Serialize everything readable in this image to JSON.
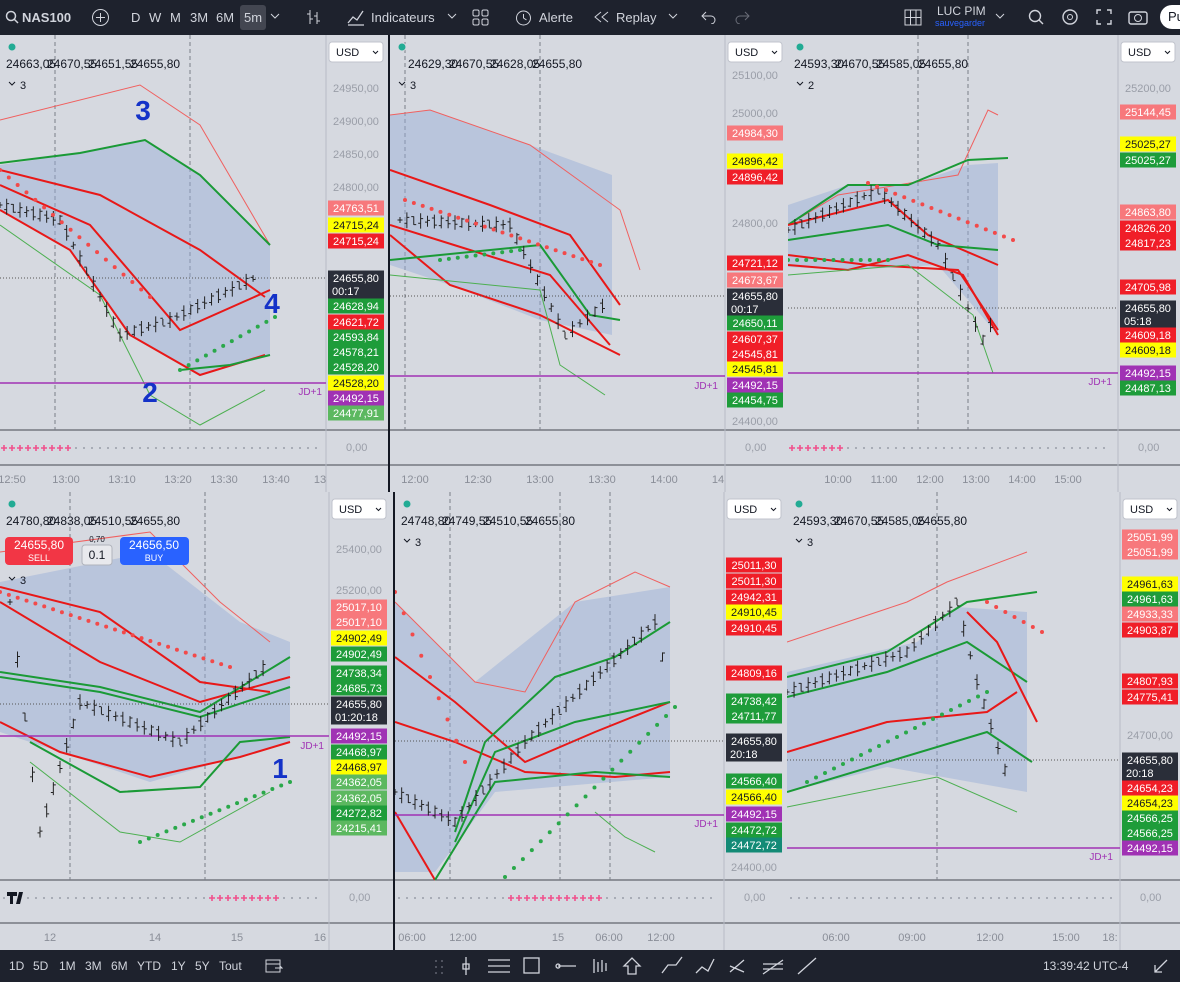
{
  "toolbar": {
    "symbol": "NAS100",
    "intervals": [
      "D",
      "W",
      "M",
      "3M",
      "6M",
      "5m"
    ],
    "indicators": "Indicateurs",
    "alert": "Alerte",
    "replay": "Replay",
    "user": "LUC PIM",
    "save": "sauvegarder",
    "publish": "Pu"
  },
  "panes": [
    {
      "ohlc": [
        "24663,05",
        "24670,55",
        "24651,55",
        "24655,80"
      ],
      "currency": "USD",
      "legend_count": "3",
      "axis_labels": [
        "24950,00",
        "24900,00",
        "24850,00",
        "24800,00"
      ],
      "price_labels": [
        {
          "text": "24763,51",
          "color": "#f7787c"
        },
        {
          "text": "24715,24",
          "color": "#ffff00"
        },
        {
          "text": "24715,24",
          "color": "#f01e28"
        },
        {
          "text": "24655,80",
          "sub": "00:17",
          "color": "#2a2e39"
        },
        {
          "text": "24628,94",
          "color": "#1e9c3a"
        },
        {
          "text": "24621,72",
          "color": "#f01e28"
        },
        {
          "text": "24593,84",
          "color": "#1e9c3a"
        },
        {
          "text": "24578,21",
          "color": "#1e9c3a"
        },
        {
          "text": "24528,20",
          "color": "#1e9c3a"
        },
        {
          "text": "24528,20",
          "color": "#ffff00"
        },
        {
          "text": "24492,15",
          "color": "#a032b4"
        },
        {
          "text": "24477,91",
          "color": "#5cb860"
        }
      ],
      "time_labels": [
        "12:50",
        "13:00",
        "13:10",
        "13:20",
        "13:30",
        "13:40",
        "13"
      ],
      "zero": "0,00",
      "jd": "JD+1",
      "annotations": [
        "3",
        "2",
        "4"
      ]
    },
    {
      "ohlc": [
        "24629,30",
        "24670,55",
        "24628,05",
        "24655,80"
      ],
      "currency": "USD",
      "legend_count": "3",
      "axis_labels": [
        "25100,00",
        "25000,00",
        "24800,00",
        "24400,00"
      ],
      "price_labels": [
        {
          "text": "24984,30",
          "color": "#f7787c"
        },
        {
          "text": "24896,42",
          "color": "#ffff00"
        },
        {
          "text": "24896,42",
          "color": "#f01e28"
        },
        {
          "text": "24721,12",
          "color": "#f01e28"
        },
        {
          "text": "24673,67",
          "color": "#f7787c"
        },
        {
          "text": "24655,80",
          "sub": "00:17",
          "color": "#2a2e39"
        },
        {
          "text": "24650,11",
          "color": "#1e9c3a"
        },
        {
          "text": "24607,37",
          "color": "#f01e28"
        },
        {
          "text": "24545,81",
          "color": "#f01e28"
        },
        {
          "text": "24545,81",
          "color": "#ffff00"
        },
        {
          "text": "24492,15",
          "color": "#a032b4"
        },
        {
          "text": "24454,75",
          "color": "#1e9c3a"
        }
      ],
      "time_labels": [
        "12:00",
        "12:30",
        "13:00",
        "13:30",
        "14:00",
        "14"
      ],
      "zero": "0,00",
      "jd": "JD+1",
      "annotations": []
    },
    {
      "ohlc": [
        "24593,30",
        "24670,55",
        "24585,05",
        "24655,80"
      ],
      "currency": "USD",
      "legend_count": "2",
      "axis_labels": [
        "25200,00"
      ],
      "price_labels": [
        {
          "text": "25144,45",
          "color": "#f7787c"
        },
        {
          "text": "25025,27",
          "color": "#ffff00"
        },
        {
          "text": "25025,27",
          "color": "#1e9c3a"
        },
        {
          "text": "24863,80",
          "color": "#f7787c"
        },
        {
          "text": "24826,20",
          "color": "#f01e28"
        },
        {
          "text": "24817,23",
          "color": "#f01e28"
        },
        {
          "text": "24705,98",
          "color": "#f01e28"
        },
        {
          "text": "24655,80",
          "sub": "05:18",
          "color": "#2a2e39"
        },
        {
          "text": "24609,18",
          "color": "#f01e28"
        },
        {
          "text": "24609,18",
          "color": "#ffff00"
        },
        {
          "text": "24492,15",
          "color": "#a032b4"
        },
        {
          "text": "24487,13",
          "color": "#1e9c3a"
        }
      ],
      "time_labels": [
        "10:00",
        "11:00",
        "12:00",
        "13:00",
        "14:00",
        "15:00"
      ],
      "zero": "0,00",
      "jd": "JD+1",
      "annotations": []
    },
    {
      "ohlc": [
        "24780,80",
        "24838,05",
        "24510,55",
        "24655,80"
      ],
      "currency": "USD",
      "legend_count": "3",
      "axis_labels": [
        "25400,00",
        "25200,00"
      ],
      "trade": {
        "sell_price": "24655,80",
        "sell": "SELL",
        "spread": "0,70",
        "qty": "0.1",
        "buy_price": "24656,50",
        "buy": "BUY"
      },
      "price_labels": [
        {
          "text": "25017,10",
          "color": "#f7787c"
        },
        {
          "text": "25017,10",
          "color": "#f7787c"
        },
        {
          "text": "24902,49",
          "color": "#ffff00"
        },
        {
          "text": "24902,49",
          "color": "#1e9c3a"
        },
        {
          "text": "24738,34",
          "color": "#1e9c3a"
        },
        {
          "text": "24685,73",
          "color": "#1e9c3a"
        },
        {
          "text": "24655,80",
          "sub": "01:20:18",
          "color": "#2a2e39"
        },
        {
          "text": "24492,15",
          "color": "#a032b4"
        },
        {
          "text": "24468,97",
          "color": "#1e9c3a"
        },
        {
          "text": "24468,97",
          "color": "#ffff00"
        },
        {
          "text": "24362,05",
          "color": "#5cb860"
        },
        {
          "text": "24362,05",
          "color": "#5cb860"
        },
        {
          "text": "24272,82",
          "color": "#1e9c3a"
        },
        {
          "text": "24215,41",
          "color": "#5cb860"
        }
      ],
      "time_labels": [
        "12",
        "14",
        "15",
        "16"
      ],
      "zero": "0,00",
      "jd": "JD+1",
      "annotations": [
        "1"
      ]
    },
    {
      "ohlc": [
        "24748,80",
        "24749,55",
        "24510,55",
        "24655,80"
      ],
      "currency": "USD",
      "legend_count": "3",
      "axis_labels": [
        "24400,00"
      ],
      "price_labels": [
        {
          "text": "25011,30",
          "color": "#f01e28"
        },
        {
          "text": "25011,30",
          "color": "#f01e28"
        },
        {
          "text": "24942,31",
          "color": "#f01e28"
        },
        {
          "text": "24910,45",
          "color": "#ffff00"
        },
        {
          "text": "24910,45",
          "color": "#f01e28"
        },
        {
          "text": "24809,16",
          "color": "#f01e28"
        },
        {
          "text": "24738,42",
          "color": "#1e9c3a"
        },
        {
          "text": "24711,77",
          "color": "#1e9c3a"
        },
        {
          "text": "24655,80",
          "sub": "20:18",
          "color": "#2a2e39"
        },
        {
          "text": "24566,40",
          "color": "#1e9c3a"
        },
        {
          "text": "24566,40",
          "color": "#ffff00"
        },
        {
          "text": "24492,15",
          "color": "#a032b4"
        },
        {
          "text": "24472,72",
          "color": "#1e9c3a"
        },
        {
          "text": "24472,72",
          "color": "#138a76"
        }
      ],
      "time_labels": [
        "06:00",
        "12:00",
        "15",
        "06:00",
        "12:00"
      ],
      "zero": "0,00",
      "jd": "JD+1",
      "annotations": []
    },
    {
      "ohlc": [
        "24593,30",
        "24670,55",
        "24585,05",
        "24655,80"
      ],
      "currency": "USD",
      "legend_count": "3",
      "axis_labels": [
        "24700,00"
      ],
      "price_labels": [
        {
          "text": "25051,99",
          "color": "#f7787c"
        },
        {
          "text": "25051,99",
          "color": "#f7787c"
        },
        {
          "text": "24961,63",
          "color": "#ffff00"
        },
        {
          "text": "24961,63",
          "color": "#1e9c3a"
        },
        {
          "text": "24933,33",
          "color": "#f7787c"
        },
        {
          "text": "24903,87",
          "color": "#f01e28"
        },
        {
          "text": "24807,93",
          "color": "#f01e28"
        },
        {
          "text": "24775,41",
          "color": "#f01e28"
        },
        {
          "text": "24655,80",
          "sub": "20:18",
          "color": "#2a2e39"
        },
        {
          "text": "24654,23",
          "color": "#f01e28"
        },
        {
          "text": "24654,23",
          "color": "#ffff00"
        },
        {
          "text": "24566,25",
          "color": "#1e9c3a"
        },
        {
          "text": "24566,25",
          "color": "#1e9c3a"
        },
        {
          "text": "24492,15",
          "color": "#a032b4"
        }
      ],
      "time_labels": [
        "06:00",
        "09:00",
        "12:00",
        "15:00",
        "18:"
      ],
      "zero": "0,00",
      "jd": "JD+1",
      "annotations": []
    }
  ],
  "bottom_bar": {
    "ranges": [
      "1D",
      "5D",
      "1M",
      "3M",
      "6M",
      "YTD",
      "1Y",
      "5Y",
      "Tout"
    ],
    "clock": "13:39:42 UTC-4"
  }
}
